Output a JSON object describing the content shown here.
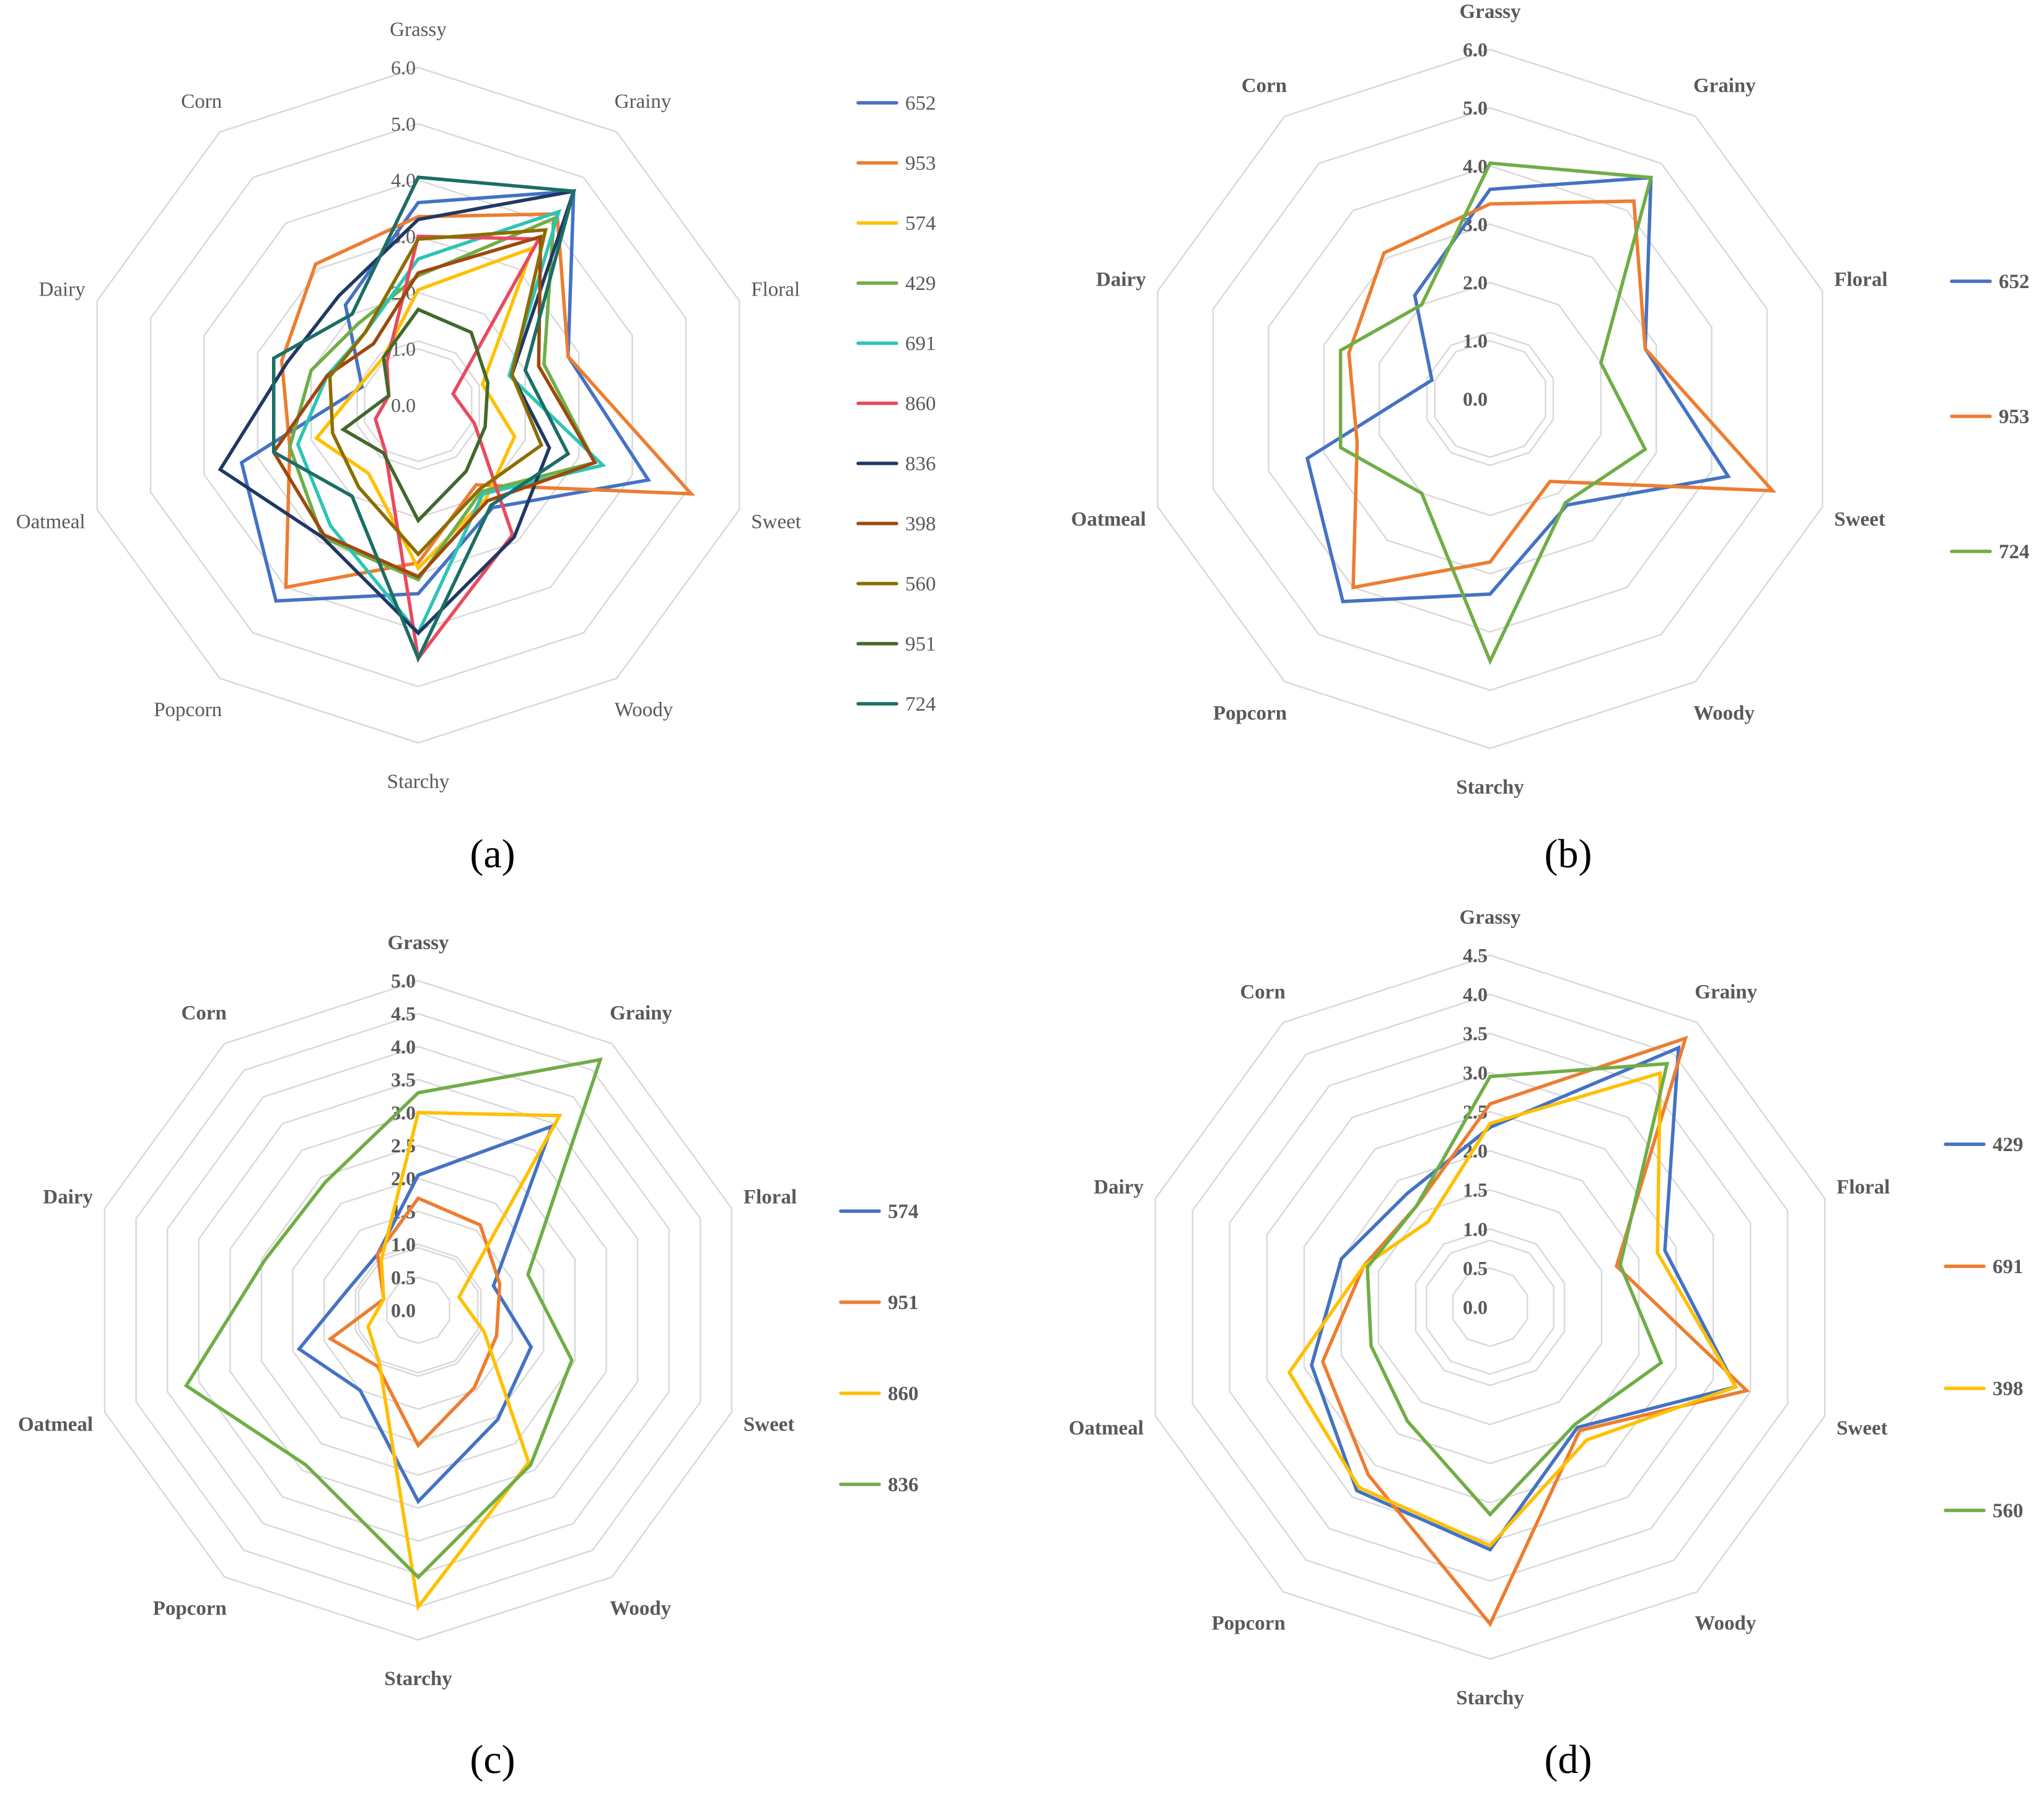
{
  "axes": [
    "Grassy",
    "Grainy",
    "Floral",
    "Sweet",
    "Woody",
    "Starchy",
    "Popcorn",
    "Oatmeal",
    "Dairy",
    "Corn"
  ],
  "chart_data": [
    {
      "type": "radar",
      "title": "(a)",
      "max": 6,
      "ticks": [
        "0.0",
        "1.0",
        "2.0",
        "3.0",
        "4.0",
        "5.0",
        "6.0"
      ],
      "tick_values": [
        0,
        1,
        2,
        3,
        4,
        5,
        6
      ],
      "legend": "right",
      "series": [
        {
          "name": "652",
          "color": "#4472C4",
          "values": [
            3.6,
            4.7,
            2.8,
            4.3,
            2.25,
            3.35,
            4.3,
            3.3,
            1.05,
            2.2
          ]
        },
        {
          "name": "953",
          "color": "#ED7D31",
          "values": [
            3.35,
            4.2,
            2.8,
            5.1,
            1.75,
            2.8,
            4.0,
            2.4,
            2.55,
            3.1
          ]
        },
        {
          "name": "574",
          "color": "#FFC000",
          "values": [
            2.05,
            3.45,
            1.2,
            1.8,
            2.05,
            2.9,
            1.5,
            1.9,
            1.1,
            1.05
          ]
        },
        {
          "name": "429",
          "color": "#70AD47",
          "values": [
            2.3,
            4.1,
            2.35,
            3.3,
            1.9,
            3.1,
            2.9,
            2.4,
            2.0,
            1.8
          ]
        },
        {
          "name": "691",
          "color": "#2EC4B6",
          "values": [
            2.6,
            4.25,
            1.7,
            3.45,
            1.95,
            4.05,
            2.65,
            2.25,
            1.7,
            1.6
          ]
        },
        {
          "name": "860",
          "color": "#E84A5F",
          "values": [
            3.0,
            3.65,
            0.65,
            1.05,
            2.85,
            4.5,
            1.0,
            0.8,
            0.55,
            0.95
          ]
        },
        {
          "name": "836",
          "color": "#203864",
          "values": [
            3.3,
            4.7,
            1.75,
            2.45,
            2.9,
            4.05,
            2.9,
            3.7,
            2.45,
            2.4
          ]
        },
        {
          "name": "398",
          "color": "#9E480E",
          "values": [
            2.35,
            3.7,
            2.25,
            3.3,
            2.1,
            3.05,
            2.85,
            2.7,
            1.7,
            1.35
          ]
        },
        {
          "name": "560",
          "color": "#8C6D00",
          "values": [
            2.95,
            3.85,
            1.75,
            2.3,
            1.85,
            2.65,
            1.8,
            1.6,
            1.65,
            1.6
          ]
        },
        {
          "name": "951",
          "color": "#43682B",
          "values": [
            1.7,
            1.6,
            1.3,
            1.25,
            1.45,
            2.05,
            1.05,
            1.4,
            0.55,
            1.05
          ]
        },
        {
          "name": "724",
          "color": "#1B6E66",
          "values": [
            4.05,
            4.7,
            2.0,
            2.8,
            2.2,
            4.5,
            2.0,
            2.7,
            2.7,
            2.0
          ]
        }
      ]
    },
    {
      "type": "radar",
      "title": "(b)",
      "max": 6,
      "ticks": [
        "0.0",
        "1.0",
        "2.0",
        "3.0",
        "4.0",
        "5.0",
        "6.0"
      ],
      "tick_values": [
        0,
        1,
        2,
        3,
        4,
        5,
        6
      ],
      "legend": "right",
      "series": [
        {
          "name": "652",
          "color": "#4472C4",
          "values": [
            3.6,
            4.7,
            2.8,
            4.3,
            2.25,
            3.35,
            4.3,
            3.3,
            1.05,
            2.2
          ]
        },
        {
          "name": "953",
          "color": "#ED7D31",
          "values": [
            3.35,
            4.2,
            2.8,
            5.1,
            1.75,
            2.8,
            4.0,
            2.4,
            2.55,
            3.1
          ]
        },
        {
          "name": "724",
          "color": "#70AD47",
          "values": [
            4.05,
            4.7,
            2.0,
            2.8,
            2.2,
            4.5,
            2.0,
            2.7,
            2.7,
            2.0
          ]
        }
      ]
    },
    {
      "type": "radar",
      "title": "(c)",
      "max": 5,
      "ticks": [
        "0.0",
        "0.5",
        "1.0",
        "1.5",
        "2.0",
        "2.5",
        "3.0",
        "3.5",
        "4.0",
        "4.5",
        "5.0"
      ],
      "tick_values": [
        0,
        0.5,
        1,
        1.5,
        2,
        2.5,
        3,
        3.5,
        4,
        4.5,
        5
      ],
      "legend": "right",
      "series": [
        {
          "name": "574",
          "color": "#4472C4",
          "values": [
            2.05,
            3.45,
            1.2,
            1.8,
            2.05,
            2.9,
            1.5,
            1.9,
            1.1,
            1.05
          ]
        },
        {
          "name": "951",
          "color": "#ED7D31",
          "values": [
            1.7,
            1.6,
            1.3,
            1.25,
            1.45,
            2.05,
            1.05,
            1.4,
            0.55,
            1.05
          ]
        },
        {
          "name": "860",
          "color": "#FFC000",
          "values": [
            3.0,
            3.65,
            0.65,
            1.05,
            2.85,
            4.5,
            1.0,
            0.8,
            0.55,
            0.95
          ]
        },
        {
          "name": "836",
          "color": "#70AD47",
          "values": [
            3.3,
            4.7,
            1.75,
            2.45,
            2.9,
            4.05,
            2.9,
            3.7,
            2.45,
            2.4
          ]
        }
      ]
    },
    {
      "type": "radar",
      "title": "(d)",
      "max": 4.5,
      "ticks": [
        "0.0",
        "0.5",
        "1.0",
        "1.5",
        "2.0",
        "2.5",
        "3.0",
        "3.5",
        "4.0",
        "4.5"
      ],
      "tick_values": [
        0,
        0.5,
        1,
        1.5,
        2,
        2.5,
        3,
        3.5,
        4,
        4.5
      ],
      "legend": "right",
      "series": [
        {
          "name": "429",
          "color": "#4472C4",
          "values": [
            2.3,
            4.1,
            2.35,
            3.3,
            1.9,
            3.1,
            2.9,
            2.4,
            2.0,
            1.8
          ]
        },
        {
          "name": "691",
          "color": "#ED7D31",
          "values": [
            2.6,
            4.25,
            1.7,
            3.45,
            1.95,
            4.05,
            2.65,
            2.25,
            1.7,
            1.6
          ]
        },
        {
          "name": "398",
          "color": "#FFC000",
          "values": [
            2.35,
            3.7,
            2.25,
            3.3,
            2.1,
            3.05,
            2.85,
            2.7,
            1.7,
            1.35
          ]
        },
        {
          "name": "560",
          "color": "#70AD47",
          "values": [
            2.95,
            3.85,
            1.75,
            2.3,
            1.85,
            2.65,
            1.8,
            1.6,
            1.65,
            1.6
          ]
        }
      ]
    }
  ]
}
